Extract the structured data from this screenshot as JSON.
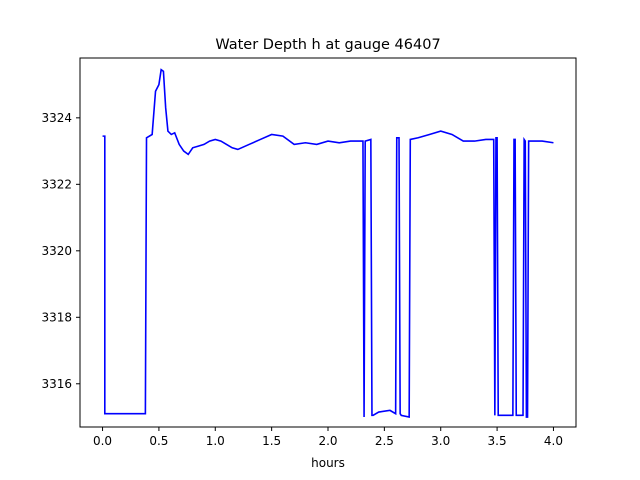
{
  "chart_data": {
    "type": "line",
    "title": "Water Depth h at gauge 46407",
    "xlabel": "hours",
    "ylabel": "",
    "xlim": [
      -0.2,
      4.2
    ],
    "ylim": [
      3314.7,
      3325.8
    ],
    "xticks": [
      0.0,
      0.5,
      1.0,
      1.5,
      2.0,
      2.5,
      3.0,
      3.5,
      4.0
    ],
    "xtick_labels": [
      "0.0",
      "0.5",
      "1.0",
      "1.5",
      "2.0",
      "2.5",
      "3.0",
      "3.5",
      "4.0"
    ],
    "yticks": [
      3316,
      3318,
      3320,
      3322,
      3324
    ],
    "ytick_labels": [
      "3316",
      "3318",
      "3320",
      "3322",
      "3324"
    ],
    "grid": false,
    "color": "#0000ff",
    "series": [
      {
        "x": [
          0.0,
          0.02,
          0.02,
          0.1,
          0.2,
          0.3,
          0.38,
          0.39,
          0.44,
          0.47,
          0.5,
          0.52,
          0.54,
          0.56,
          0.58,
          0.61,
          0.64,
          0.68,
          0.72,
          0.76,
          0.8,
          0.85,
          0.9,
          0.95,
          1.0,
          1.05,
          1.1,
          1.15,
          1.2,
          1.3,
          1.4,
          1.5,
          1.6,
          1.7,
          1.8,
          1.9,
          2.0,
          2.1,
          2.2,
          2.31,
          2.32,
          2.33,
          2.38,
          2.39,
          2.4,
          2.45,
          2.55,
          2.6,
          2.61,
          2.63,
          2.64,
          2.65,
          2.72,
          2.73,
          2.8,
          2.9,
          3.0,
          3.1,
          3.2,
          3.3,
          3.4,
          3.47,
          3.48,
          3.49,
          3.5,
          3.51,
          3.52,
          3.53,
          3.64,
          3.65,
          3.66,
          3.67,
          3.73,
          3.74,
          3.75,
          3.76,
          3.77,
          3.78,
          3.9,
          4.0
        ],
        "values": [
          3323.45,
          3323.45,
          3315.1,
          3315.1,
          3315.1,
          3315.1,
          3315.1,
          3323.4,
          3323.5,
          3324.8,
          3325.0,
          3325.45,
          3325.4,
          3324.3,
          3323.6,
          3323.5,
          3323.55,
          3323.2,
          3323.0,
          3322.9,
          3323.1,
          3323.15,
          3323.2,
          3323.3,
          3323.35,
          3323.3,
          3323.2,
          3323.1,
          3323.05,
          3323.2,
          3323.35,
          3323.5,
          3323.45,
          3323.2,
          3323.25,
          3323.2,
          3323.3,
          3323.25,
          3323.3,
          3323.3,
          3315.0,
          3323.3,
          3323.35,
          3315.05,
          3315.05,
          3315.15,
          3315.2,
          3315.1,
          3323.4,
          3323.4,
          3315.1,
          3315.05,
          3315.0,
          3323.35,
          3323.4,
          3323.5,
          3323.6,
          3323.5,
          3323.3,
          3323.3,
          3323.35,
          3323.35,
          3315.05,
          3323.4,
          3323.4,
          3315.05,
          3315.05,
          3315.05,
          3315.05,
          3323.35,
          3323.35,
          3315.05,
          3315.05,
          3323.35,
          3323.3,
          3315.0,
          3315.0,
          3323.3,
          3323.3,
          3323.25
        ]
      }
    ]
  }
}
